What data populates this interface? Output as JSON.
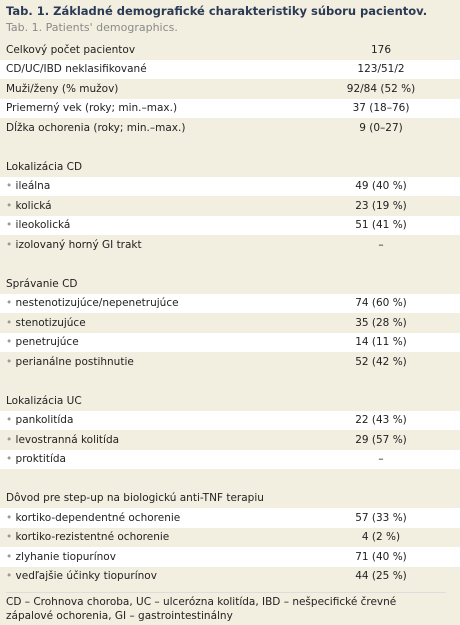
{
  "header": {
    "title": "Tab. 1. Základné demografické charakteristiky súboru pacientov.",
    "subtitle": "Tab. 1. Patients' demographics."
  },
  "summary": [
    [
      "Celkový počet pacientov",
      "176"
    ],
    [
      "CD/UC/IBD neklasifikované",
      "123/51/2"
    ],
    [
      "Muži/ženy (% mužov)",
      "92/84 (52 %)"
    ],
    [
      "Priemerný vek (roky; min.–max.)",
      "37 (18–76)"
    ],
    [
      "Dĺžka ochorenia (roky; min.–max.)",
      "9 (0–27)"
    ]
  ],
  "sections": [
    {
      "heading": "Lokalizácia CD",
      "rows": [
        [
          "ileálna",
          "49 (40 %)"
        ],
        [
          "kolická",
          "23 (19 %)"
        ],
        [
          "ileokolická",
          "51 (41 %)"
        ],
        [
          "izolovaný horný GI trakt",
          "–"
        ]
      ]
    },
    {
      "heading": "Správanie CD",
      "rows": [
        [
          "nestenotizujúce/nepenetrujúce",
          "74 (60 %)"
        ],
        [
          "stenotizujúce",
          "35 (28 %)"
        ],
        [
          "penetrujúce",
          "14 (11 %)"
        ],
        [
          "perianálne postihnutie",
          "52 (42 %)"
        ]
      ]
    },
    {
      "heading": "Lokalizácia UC",
      "rows": [
        [
          "pankolitída",
          "22 (43 %)"
        ],
        [
          "levostranná kolitída",
          "29 (57 %)"
        ],
        [
          "proktitída",
          "–"
        ]
      ]
    },
    {
      "heading": "Dôvod pre step-up na biologickú anti-TNF terapiu",
      "rows": [
        [
          "kortiko-dependentné ochorenie",
          "57 (33 %)"
        ],
        [
          "kortiko-rezistentné ochorenie",
          "4 (2 %)"
        ],
        [
          "zlyhanie tiopurínov",
          "71 (40 %)"
        ],
        [
          "vedľajšie účinky tiopurínov",
          "44 (25 %)"
        ]
      ]
    }
  ],
  "footnote": "CD – Crohnova choroba, UC – ulcerózna kolitída, IBD – nešpecifické črevné zápalové ochorenia, GI – gastrointestinálny"
}
